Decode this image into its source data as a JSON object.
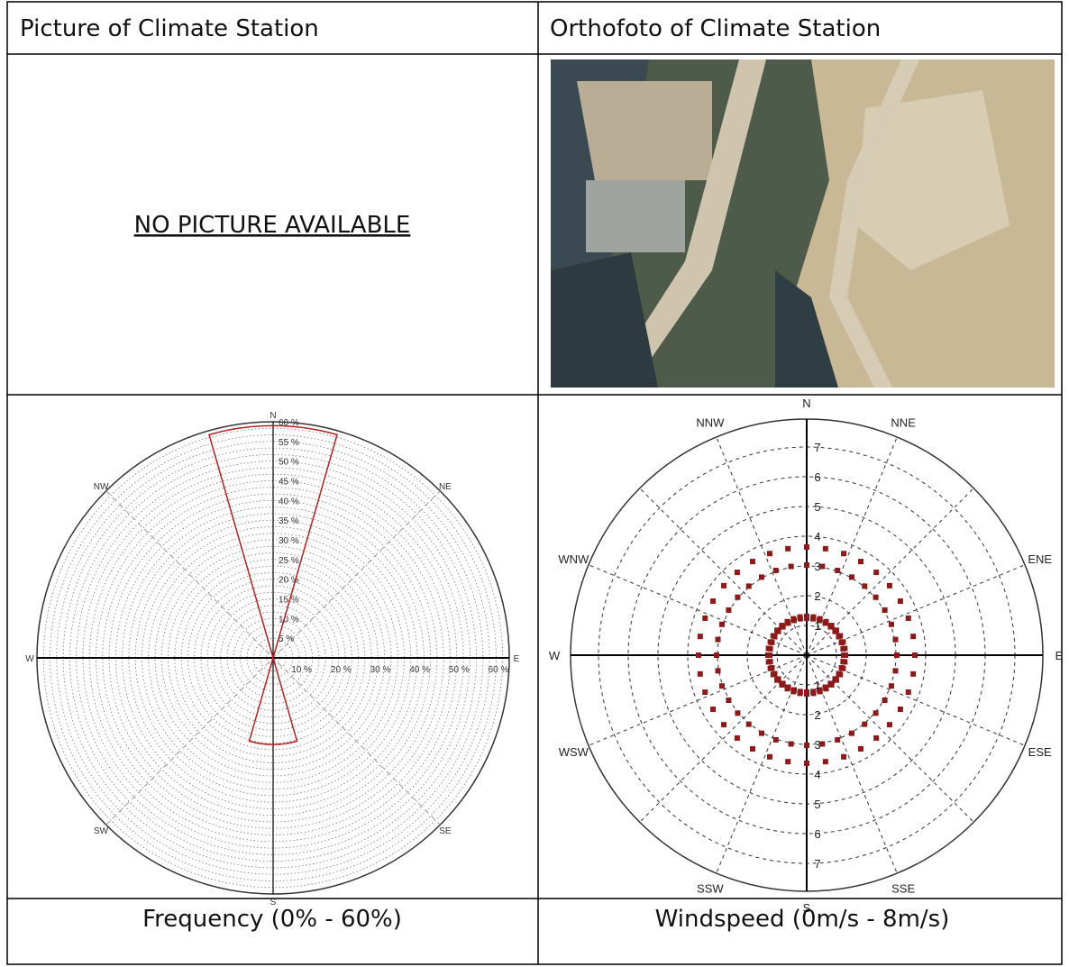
{
  "table": {
    "headers": [
      "Picture of Climate Station",
      "Orthofoto of Climate Station"
    ],
    "no_picture": "NO PICTURE AVAILABLE",
    "captions": [
      "Frequency (0% - 60%)",
      "Windspeed (0m/s - 8m/s)"
    ]
  },
  "frequency_rose": {
    "directions": [
      "N",
      "NE",
      "E",
      "SE",
      "S",
      "SW",
      "W",
      "NW"
    ],
    "ring_labels": [
      "5 %",
      "10 %",
      "15 %",
      "20 %",
      "25 %",
      "30 %",
      "35 %",
      "40 %",
      "45 %",
      "50 %",
      "55 %",
      "60 %"
    ],
    "axis_labels": [
      "10 %",
      "20 %",
      "30 %",
      "40 %",
      "50 %",
      "60 %"
    ],
    "sectors": [
      {
        "direction": "N",
        "value": 59
      },
      {
        "direction": "S",
        "value": 22
      }
    ],
    "max": 60,
    "color": "#b22222"
  },
  "windspeed_rose": {
    "directions": [
      "N",
      "NNE",
      "ENE",
      "E",
      "ESE",
      "SSE",
      "S",
      "SSW",
      "WSW",
      "W",
      "WNW",
      "NNW"
    ],
    "speed_labels": [
      "1",
      "2",
      "3",
      "4",
      "5",
      "6",
      "7"
    ],
    "color": "#8b1a1a"
  }
}
